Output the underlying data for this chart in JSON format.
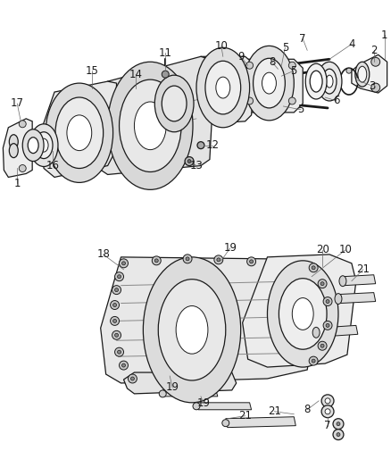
{
  "bg_color": "#ffffff",
  "line_color": "#1a1a1a",
  "label_color": "#000000",
  "fig_width": 4.38,
  "fig_height": 5.33,
  "dpi": 100,
  "font_size": 8.5,
  "lw": 0.9
}
